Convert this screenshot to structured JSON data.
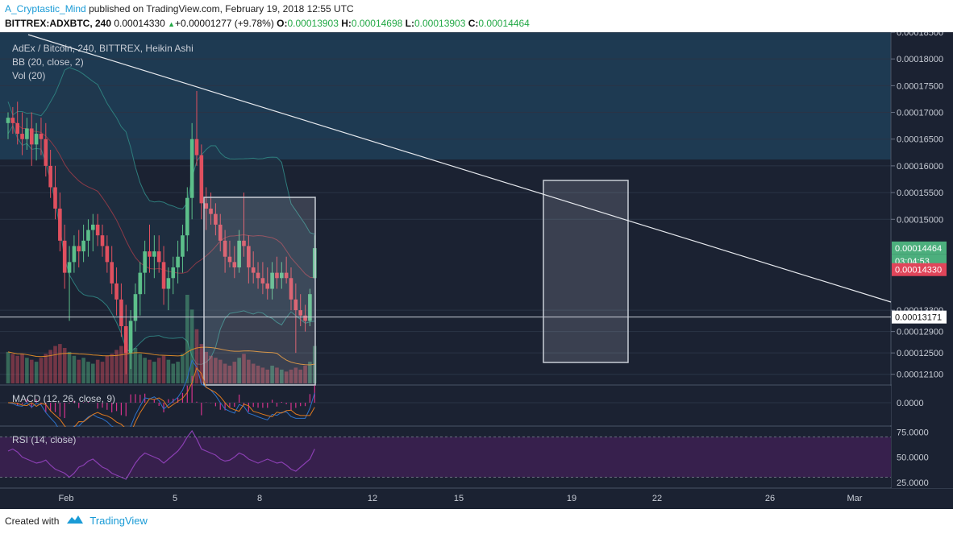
{
  "header": {
    "author": "A_Cryptastic_Mind",
    "published": "published on TradingView.com, February 19, 2018 12:55 UTC",
    "symbol": "BITTREX:ADXBTC, 240",
    "price": "0.00014330",
    "change_arrow": "▲",
    "change": "+0.00001277 (+9.78%)",
    "o_label": "O:",
    "o_value": "0.00013903",
    "h_label": "H:",
    "h_value": "0.00014698",
    "l_label": "L:",
    "l_value": "0.00013903",
    "c_label": "C:",
    "c_value": "0.00014464"
  },
  "footer": {
    "created_with": "Created with",
    "brand": "TradingView"
  },
  "colors": {
    "bull": "#5cbf8a",
    "bear": "#e0505f",
    "background": "#1b2232",
    "bb_fill": "#20364a",
    "bb_line": "#2e7d7d",
    "volume_ma": "#d9892a",
    "macd_line": "#2d72c9",
    "signal_line": "#e07a1f",
    "histogram": "#d6338c",
    "rsi_line": "#8a3fb2",
    "rsi_band": "#37204d",
    "price_up_badge": "#4caf7d",
    "price_down_badge": "#e0455a"
  },
  "chart_data": {
    "type": "candlestick",
    "title": "AdEx / Bitcoin, 240, BITTREX, Heikin Ashi",
    "indicators": [
      "BB (20, close, 2)",
      "Vol (20)"
    ],
    "y_axis": {
      "ticks": [
        "0.00018500",
        "0.00018000",
        "0.00017500",
        "0.00017000",
        "0.00016500",
        "0.00016000",
        "0.00015500",
        "0.00015000",
        "0.00013300",
        "0.00012900",
        "0.00012500",
        "0.00012100"
      ],
      "ylim": [
        0.000119,
        0.000185
      ]
    },
    "x_axis": {
      "ticks": [
        "Feb",
        "5",
        "8",
        "12",
        "15",
        "19",
        "22",
        "26",
        "Mar"
      ]
    },
    "price_labels": {
      "close": "0.00014464",
      "countdown": "03:04:53",
      "last": "0.00014330",
      "support": "0.00013171"
    },
    "support_level": 0.00013171,
    "trendline": {
      "from": [
        "Jan 31",
        0.000186
      ],
      "to": [
        "Feb 28",
        0.000131
      ]
    },
    "ohlc": [
      {
        "o": 0.000168,
        "h": 0.00017,
        "l": 0.000165,
        "c": 0.000169
      },
      {
        "o": 0.000169,
        "h": 0.000171,
        "l": 0.000166,
        "c": 0.000168
      },
      {
        "o": 0.000168,
        "h": 0.000172,
        "l": 0.000164,
        "c": 0.000166
      },
      {
        "o": 0.000166,
        "h": 0.00017,
        "l": 0.000162,
        "c": 0.000165
      },
      {
        "o": 0.000165,
        "h": 0.000169,
        "l": 0.000163,
        "c": 0.000167
      },
      {
        "o": 0.000167,
        "h": 0.00017,
        "l": 0.00016,
        "c": 0.000164
      },
      {
        "o": 0.000164,
        "h": 0.000168,
        "l": 0.000161,
        "c": 0.000166
      },
      {
        "o": 0.000166,
        "h": 0.000169,
        "l": 0.000162,
        "c": 0.000165
      },
      {
        "o": 0.000165,
        "h": 0.000168,
        "l": 0.000158,
        "c": 0.00016
      },
      {
        "o": 0.00016,
        "h": 0.000163,
        "l": 0.000154,
        "c": 0.000156
      },
      {
        "o": 0.000156,
        "h": 0.00016,
        "l": 0.00015,
        "c": 0.000152
      },
      {
        "o": 0.000152,
        "h": 0.000155,
        "l": 0.000144,
        "c": 0.000146
      },
      {
        "o": 0.000146,
        "h": 0.000149,
        "l": 0.000137,
        "c": 0.00014
      },
      {
        "o": 0.00014,
        "h": 0.000145,
        "l": 0.000131,
        "c": 0.000142
      },
      {
        "o": 0.000142,
        "h": 0.000147,
        "l": 0.00014,
        "c": 0.000145
      },
      {
        "o": 0.000145,
        "h": 0.000148,
        "l": 0.000141,
        "c": 0.000144
      },
      {
        "o": 0.000144,
        "h": 0.000149,
        "l": 0.000142,
        "c": 0.000146
      },
      {
        "o": 0.000146,
        "h": 0.00015,
        "l": 0.000143,
        "c": 0.000148
      },
      {
        "o": 0.000148,
        "h": 0.000151,
        "l": 0.000144,
        "c": 0.000149
      },
      {
        "o": 0.000149,
        "h": 0.000151,
        "l": 0.000145,
        "c": 0.000147
      },
      {
        "o": 0.000147,
        "h": 0.000149,
        "l": 0.000143,
        "c": 0.000145
      },
      {
        "o": 0.000145,
        "h": 0.000147,
        "l": 0.00014,
        "c": 0.000142
      },
      {
        "o": 0.000142,
        "h": 0.000145,
        "l": 0.000136,
        "c": 0.000138
      },
      {
        "o": 0.000138,
        "h": 0.000141,
        "l": 0.000132,
        "c": 0.000135
      },
      {
        "o": 0.000135,
        "h": 0.000138,
        "l": 0.000128,
        "c": 0.00013
      },
      {
        "o": 0.00013,
        "h": 0.000134,
        "l": 0.000121,
        "c": 0.000125
      },
      {
        "o": 0.000125,
        "h": 0.000133,
        "l": 0.000122,
        "c": 0.000131
      },
      {
        "o": 0.000131,
        "h": 0.000138,
        "l": 0.000129,
        "c": 0.000136
      },
      {
        "o": 0.000136,
        "h": 0.000142,
        "l": 0.000132,
        "c": 0.00014
      },
      {
        "o": 0.00014,
        "h": 0.000146,
        "l": 0.000136,
        "c": 0.000144
      },
      {
        "o": 0.000144,
        "h": 0.000149,
        "l": 0.00014,
        "c": 0.000143
      },
      {
        "o": 0.000143,
        "h": 0.000147,
        "l": 0.000139,
        "c": 0.000144
      },
      {
        "o": 0.000144,
        "h": 0.000147,
        "l": 0.00014,
        "c": 0.000142
      },
      {
        "o": 0.000142,
        "h": 0.000145,
        "l": 0.000134,
        "c": 0.000137
      },
      {
        "o": 0.000137,
        "h": 0.000141,
        "l": 0.000133,
        "c": 0.000139
      },
      {
        "o": 0.000139,
        "h": 0.000143,
        "l": 0.000136,
        "c": 0.000141
      },
      {
        "o": 0.000141,
        "h": 0.000146,
        "l": 0.000138,
        "c": 0.000143
      },
      {
        "o": 0.000143,
        "h": 0.000149,
        "l": 0.00014,
        "c": 0.000147
      },
      {
        "o": 0.000147,
        "h": 0.000156,
        "l": 0.000144,
        "c": 0.000154
      },
      {
        "o": 0.000154,
        "h": 0.000168,
        "l": 0.00015,
        "c": 0.000165
      },
      {
        "o": 0.000165,
        "h": 0.000174,
        "l": 0.00016,
        "c": 0.000162
      },
      {
        "o": 0.000162,
        "h": 0.000164,
        "l": 0.00015,
        "c": 0.000153
      },
      {
        "o": 0.000153,
        "h": 0.000156,
        "l": 0.000148,
        "c": 0.000152
      },
      {
        "o": 0.000152,
        "h": 0.000155,
        "l": 0.000149,
        "c": 0.000151
      },
      {
        "o": 0.000151,
        "h": 0.000153,
        "l": 0.000147,
        "c": 0.000149
      },
      {
        "o": 0.000149,
        "h": 0.000151,
        "l": 0.000144,
        "c": 0.000146
      },
      {
        "o": 0.000146,
        "h": 0.000148,
        "l": 0.00014,
        "c": 0.000143
      },
      {
        "o": 0.000143,
        "h": 0.000146,
        "l": 0.000141,
        "c": 0.000142
      },
      {
        "o": 0.000142,
        "h": 0.000145,
        "l": 0.000139,
        "c": 0.000141
      },
      {
        "o": 0.000141,
        "h": 0.000148,
        "l": 0.00014,
        "c": 0.000146
      },
      {
        "o": 0.000146,
        "h": 0.000155,
        "l": 0.000143,
        "c": 0.000145
      },
      {
        "o": 0.000145,
        "h": 0.000147,
        "l": 0.000138,
        "c": 0.000141
      },
      {
        "o": 0.000141,
        "h": 0.000144,
        "l": 0.000138,
        "c": 0.00014
      },
      {
        "o": 0.00014,
        "h": 0.000142,
        "l": 0.000137,
        "c": 0.000139
      },
      {
        "o": 0.000139,
        "h": 0.000142,
        "l": 0.000136,
        "c": 0.000138
      },
      {
        "o": 0.000138,
        "h": 0.000141,
        "l": 0.000135,
        "c": 0.000137
      },
      {
        "o": 0.000137,
        "h": 0.000142,
        "l": 0.000135,
        "c": 0.00014
      },
      {
        "o": 0.00014,
        "h": 0.000143,
        "l": 0.000137,
        "c": 0.000139
      },
      {
        "o": 0.000139,
        "h": 0.000142,
        "l": 0.000137,
        "c": 0.00014
      },
      {
        "o": 0.00014,
        "h": 0.000143,
        "l": 0.000138,
        "c": 0.000139
      },
      {
        "o": 0.000139,
        "h": 0.000141,
        "l": 0.000133,
        "c": 0.000135
      },
      {
        "o": 0.000135,
        "h": 0.000138,
        "l": 0.000125,
        "c": 0.000133
      },
      {
        "o": 0.000133,
        "h": 0.000136,
        "l": 0.00013,
        "c": 0.000132
      },
      {
        "o": 0.000132,
        "h": 0.000134,
        "l": 0.000129,
        "c": 0.000131
      },
      {
        "o": 0.000131,
        "h": 0.000137,
        "l": 0.00013,
        "c": 0.000136
      },
      {
        "o": 0.000139,
        "h": 0.000147,
        "l": 0.000139,
        "c": 0.0001446
      }
    ],
    "volume": [
      32,
      30,
      28,
      30,
      26,
      24,
      22,
      26,
      30,
      34,
      38,
      40,
      36,
      32,
      28,
      24,
      26,
      22,
      20,
      24,
      22,
      28,
      30,
      34,
      38,
      42,
      40,
      36,
      30,
      26,
      24,
      22,
      26,
      28,
      24,
      20,
      22,
      30,
      90,
      75,
      55,
      40,
      32,
      28,
      26,
      24,
      20,
      18,
      22,
      26,
      30,
      24,
      20,
      18,
      16,
      14,
      18,
      16,
      14,
      12,
      14,
      16,
      14,
      18,
      22,
      38
    ],
    "macd": {
      "labels": [
        "MACD (12, 26, close, 9)"
      ],
      "ticks": [
        "0.0000"
      ]
    },
    "rsi": {
      "labels": [
        "RSI (14, close)"
      ],
      "ticks": [
        "75.0000",
        "50.0000",
        "25.0000"
      ],
      "values": [
        56,
        58,
        55,
        50,
        48,
        46,
        44,
        45,
        47,
        42,
        38,
        36,
        34,
        30,
        34,
        40,
        42,
        46,
        48,
        44,
        40,
        38,
        34,
        32,
        30,
        28,
        36,
        44,
        50,
        54,
        52,
        50,
        48,
        44,
        48,
        52,
        56,
        62,
        70,
        76,
        68,
        58,
        56,
        54,
        52,
        48,
        46,
        47,
        50,
        54,
        52,
        48,
        46,
        44,
        46,
        48,
        46,
        44,
        45,
        42,
        38,
        36,
        40,
        44,
        48,
        58
      ]
    }
  }
}
